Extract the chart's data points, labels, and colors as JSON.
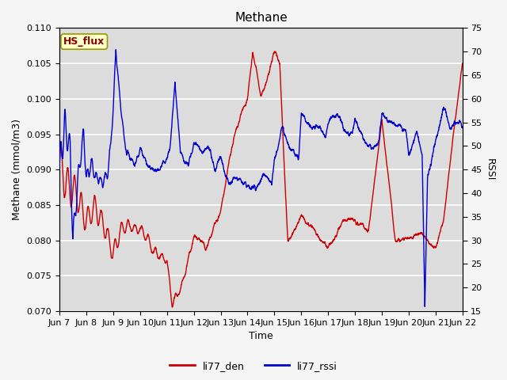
{
  "title": "Methane",
  "ylabel_left": "Methane (mmol/m3)",
  "ylabel_right": "RSSI",
  "xlabel": "Time",
  "ylim_left": [
    0.07,
    0.11
  ],
  "ylim_right": [
    15,
    75
  ],
  "yticks_left": [
    0.07,
    0.075,
    0.08,
    0.085,
    0.09,
    0.095,
    0.1,
    0.105,
    0.11
  ],
  "yticks_right": [
    15,
    20,
    25,
    30,
    35,
    40,
    45,
    50,
    55,
    60,
    65,
    70,
    75
  ],
  "xtick_labels": [
    "Jun 7",
    "Jun 8",
    "Jun 9",
    "Jun 10",
    "Jun 11",
    "Jun 12",
    "Jun 13",
    "Jun 14",
    "Jun 15",
    "Jun 16",
    "Jun 17",
    "Jun 18",
    "Jun 19",
    "Jun 20",
    "Jun 21",
    "Jun 22"
  ],
  "color_red": "#cc0000",
  "color_blue": "#0000cc",
  "legend_labels": [
    "li77_den",
    "li77_rssi"
  ],
  "legend_colors": [
    "#cc0000",
    "#0000cc"
  ],
  "box_label": "HS_flux",
  "box_text_color": "#8b0000",
  "box_fill": "#ffffcc",
  "box_edge": "#999900",
  "plot_bg": "#dcdcdc",
  "fig_bg": "#f5f5f5",
  "grid_color": "#ffffff",
  "title_fontsize": 11,
  "axis_fontsize": 9,
  "tick_fontsize": 8,
  "linewidth": 1.0
}
